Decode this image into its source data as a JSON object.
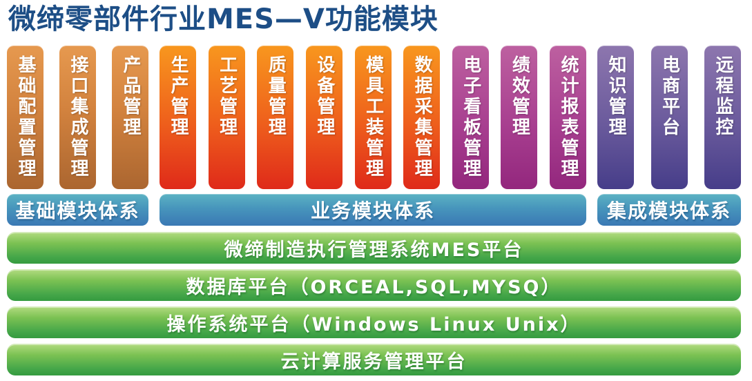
{
  "title": "微缔零部件行业MES—V功能模块",
  "colors": {
    "title_text": "#1d4e86",
    "pillar_orange_top": "#e6994f",
    "pillar_orange_bottom": "#ab6630",
    "pillar_red_top": "#f8971e",
    "pillar_red_bottom": "#df2a1a",
    "pillar_magenta_top": "#bd60a0",
    "pillar_magenta_bottom": "#93277d",
    "pillar_purple_top": "#8d76ae",
    "pillar_purple_bottom": "#463d89",
    "band_blue_top": "#5cb2c3",
    "band_blue_bottom": "#3a78b4",
    "layer_green_top": "#b4dc82",
    "layer_green_bottom": "#359b40",
    "text_on_color": "#ffffff"
  },
  "sections": [
    {
      "band": "基础模块体系",
      "pillars": [
        {
          "label": "基础配置管理",
          "color": "orange"
        },
        {
          "label": "接口集成管理",
          "color": "orange"
        },
        {
          "label": "产品管理",
          "color": "orange"
        }
      ]
    },
    {
      "band": "业务模块体系",
      "pillars": [
        {
          "label": "生产管理",
          "color": "red"
        },
        {
          "label": "工艺管理",
          "color": "red"
        },
        {
          "label": "质量管理",
          "color": "red"
        },
        {
          "label": "设备管理",
          "color": "red"
        },
        {
          "label": "模具工装管理",
          "color": "red"
        },
        {
          "label": "数据采集管理",
          "color": "red"
        },
        {
          "label": "电子看板管理",
          "color": "magenta"
        },
        {
          "label": "绩效管理",
          "color": "magenta"
        },
        {
          "label": "统计报表管理",
          "color": "magenta"
        }
      ]
    },
    {
      "band": "集成模块体系",
      "pillars": [
        {
          "label": "知识管理",
          "color": "purple"
        },
        {
          "label": "电商平台",
          "color": "purple"
        },
        {
          "label": "远程监控",
          "color": "purple"
        }
      ]
    }
  ],
  "platform_layers": [
    {
      "label": "微缔制造执行管理系统MES平台"
    },
    {
      "label": "数据库平台（ORCEAL,SQL,MYSQ）"
    },
    {
      "label": "操作系统平台（Windows Linux Unix）"
    },
    {
      "label": "云计算服务管理平台"
    }
  ]
}
